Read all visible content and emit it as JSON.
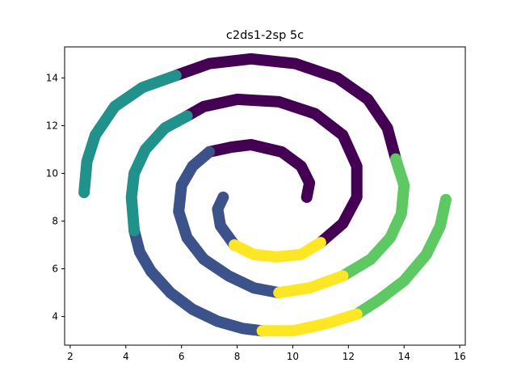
{
  "chart_data": {
    "type": "scatter",
    "title": "c2ds1-2sp 5c",
    "xlabel": "",
    "ylabel": "",
    "xlim": [
      1.8,
      16.2
    ],
    "ylim": [
      2.8,
      15.3
    ],
    "xticks": [
      2,
      4,
      6,
      8,
      10,
      12,
      14,
      16
    ],
    "yticks": [
      4,
      6,
      8,
      10,
      12,
      14
    ],
    "grid": false,
    "legend": "none",
    "series": [
      {
        "color": "#440154",
        "segments": [
          [
            [
              10.5,
              9.0
            ],
            [
              10.6,
              9.6
            ],
            [
              10.3,
              10.3
            ],
            [
              9.6,
              10.9
            ],
            [
              8.5,
              11.2
            ],
            [
              7.8,
              11.1
            ],
            [
              7.0,
              10.9
            ]
          ],
          [
            [
              11.0,
              7.1
            ],
            [
              11.8,
              7.9
            ],
            [
              12.3,
              9.0
            ],
            [
              12.3,
              10.3
            ],
            [
              11.8,
              11.6
            ],
            [
              10.8,
              12.5
            ],
            [
              9.5,
              13.0
            ],
            [
              8.0,
              13.1
            ],
            [
              6.8,
              12.8
            ],
            [
              6.2,
              12.4
            ]
          ],
          [
            [
              13.7,
              10.6
            ],
            [
              13.4,
              11.9
            ],
            [
              12.7,
              13.1
            ],
            [
              11.6,
              14.0
            ],
            [
              10.1,
              14.6
            ],
            [
              8.5,
              14.8
            ],
            [
              7.0,
              14.6
            ],
            [
              5.8,
              14.1
            ]
          ]
        ]
      },
      {
        "color": "#3b528b",
        "segments": [
          [
            [
              7.5,
              9.0
            ],
            [
              7.3,
              8.5
            ],
            [
              7.4,
              7.8
            ],
            [
              7.9,
              7.0
            ]
          ],
          [
            [
              7.0,
              10.9
            ],
            [
              6.4,
              10.3
            ],
            [
              6.0,
              9.5
            ],
            [
              5.9,
              8.4
            ],
            [
              6.2,
              7.3
            ],
            [
              6.8,
              6.4
            ],
            [
              7.7,
              5.7
            ],
            [
              8.6,
              5.2
            ],
            [
              9.5,
              5.0
            ]
          ],
          [
            [
              4.3,
              7.6
            ],
            [
              4.5,
              6.7
            ],
            [
              4.9,
              5.9
            ],
            [
              5.6,
              5.0
            ],
            [
              6.4,
              4.3
            ],
            [
              7.3,
              3.8
            ],
            [
              8.2,
              3.5
            ],
            [
              8.9,
              3.4
            ]
          ]
        ]
      },
      {
        "color": "#21918c",
        "segments": [
          [
            [
              6.2,
              12.4
            ],
            [
              5.4,
              11.9
            ],
            [
              4.7,
              11.0
            ],
            [
              4.3,
              10.0
            ],
            [
              4.2,
              9.0
            ],
            [
              4.3,
              7.6
            ]
          ],
          [
            [
              5.8,
              14.1
            ],
            [
              4.6,
              13.6
            ],
            [
              3.6,
              12.8
            ],
            [
              2.9,
              11.6
            ],
            [
              2.6,
              10.5
            ],
            [
              2.5,
              9.2
            ]
          ]
        ]
      },
      {
        "color": "#5ec962",
        "segments": [
          [
            [
              13.7,
              10.6
            ],
            [
              14.0,
              9.5
            ],
            [
              13.9,
              8.3
            ],
            [
              13.5,
              7.3
            ],
            [
              12.8,
              6.4
            ],
            [
              11.8,
              5.7
            ]
          ],
          [
            [
              15.5,
              8.9
            ],
            [
              15.3,
              7.8
            ],
            [
              14.8,
              6.6
            ],
            [
              14.0,
              5.5
            ],
            [
              13.1,
              4.7
            ],
            [
              12.3,
              4.1
            ]
          ]
        ]
      },
      {
        "color": "#fde725",
        "segments": [
          [
            [
              7.9,
              7.0
            ],
            [
              8.6,
              6.6
            ],
            [
              9.4,
              6.5
            ],
            [
              10.3,
              6.6
            ],
            [
              11.0,
              7.1
            ]
          ],
          [
            [
              9.5,
              5.0
            ],
            [
              10.6,
              5.2
            ],
            [
              11.8,
              5.7
            ]
          ],
          [
            [
              8.9,
              3.4
            ],
            [
              10.0,
              3.4
            ],
            [
              11.2,
              3.7
            ],
            [
              12.3,
              4.1
            ]
          ]
        ]
      }
    ]
  }
}
